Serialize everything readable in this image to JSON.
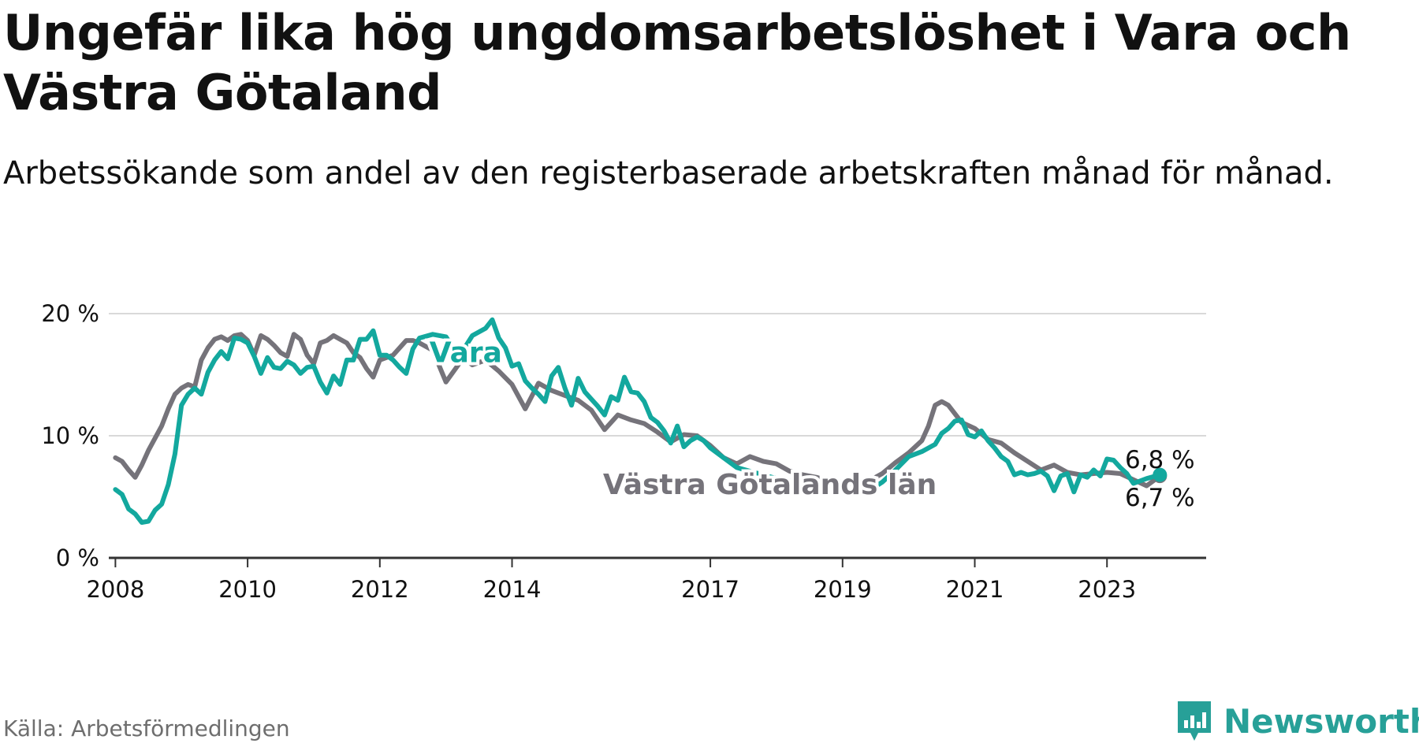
{
  "header": {
    "title": "Ungefär lika hög ungdomsarbetslöshet i Vara och Västra Götaland",
    "subtitle": "Arbetssökande som andel av den registerbaserade arbetskraften månad för månad."
  },
  "footer": {
    "source": "Källa: Arbetsförmedlingen",
    "brand": "Newsworthy"
  },
  "colors": {
    "vara": "#13a89e",
    "vgl": "#75737a",
    "grid": "#d9d9d9",
    "axis": "#333333",
    "text": "#111111"
  },
  "chart_data": {
    "type": "line",
    "title": "Ungefär lika hög ungdomsarbetslöshet i Vara och Västra Götaland",
    "xlabel": "",
    "ylabel": "",
    "xlim": [
      2007.9,
      2024.5
    ],
    "ylim": [
      0,
      20
    ],
    "yticks": [
      0,
      10,
      20
    ],
    "ytick_labels": [
      "0 %",
      "10 %",
      "20 %"
    ],
    "xticks": [
      2008,
      2010,
      2012,
      2014,
      2017,
      2019,
      2021,
      2023
    ],
    "xtick_labels": [
      "2008",
      "2010",
      "2012",
      "2014",
      "2017",
      "2019",
      "2021",
      "2023"
    ],
    "grid": true,
    "series": [
      {
        "name": "Västra Götalands län",
        "label": "Västra Götalands län",
        "end_label": "6,7 %",
        "color": "#75737a",
        "x": [
          2008.0,
          2008.1,
          2008.2,
          2008.3,
          2008.4,
          2008.5,
          2008.6,
          2008.7,
          2008.8,
          2008.9,
          2009.0,
          2009.1,
          2009.2,
          2009.3,
          2009.4,
          2009.5,
          2009.6,
          2009.7,
          2009.8,
          2009.9,
          2010.0,
          2010.1,
          2010.2,
          2010.3,
          2010.4,
          2010.5,
          2010.6,
          2010.7,
          2010.8,
          2010.9,
          2011.0,
          2011.1,
          2011.2,
          2011.3,
          2011.4,
          2011.5,
          2011.6,
          2011.7,
          2011.8,
          2011.9,
          2012.0,
          2012.1,
          2012.2,
          2012.3,
          2012.4,
          2012.5,
          2012.6,
          2012.8,
          2013.0,
          2013.2,
          2013.3,
          2013.4,
          2013.5,
          2013.6,
          2013.8,
          2014.0,
          2014.2,
          2014.4,
          2014.6,
          2014.8,
          2015.0,
          2015.2,
          2015.4,
          2015.6,
          2015.8,
          2016.0,
          2016.2,
          2016.4,
          2016.6,
          2016.8,
          2017.0,
          2017.2,
          2017.4,
          2017.6,
          2017.8,
          2018.0,
          2018.2,
          2018.4,
          2018.6,
          2018.8,
          2019.0,
          2019.2,
          2019.4,
          2019.6,
          2019.8,
          2020.0,
          2020.2,
          2020.3,
          2020.4,
          2020.5,
          2020.6,
          2020.7,
          2020.8,
          2021.0,
          2021.2,
          2021.4,
          2021.6,
          2021.8,
          2022.0,
          2022.2,
          2022.4,
          2022.6,
          2022.8,
          2023.0,
          2023.2,
          2023.4,
          2023.6,
          2023.8
        ],
        "values": [
          8.2,
          7.9,
          7.2,
          6.6,
          7.6,
          8.8,
          9.8,
          10.8,
          12.2,
          13.4,
          13.9,
          14.2,
          14.0,
          16.2,
          17.2,
          17.9,
          18.1,
          17.8,
          18.2,
          18.3,
          17.8,
          16.6,
          18.2,
          17.9,
          17.4,
          16.8,
          16.5,
          18.3,
          17.9,
          16.6,
          15.9,
          17.6,
          17.8,
          18.2,
          17.9,
          17.6,
          16.8,
          16.4,
          15.5,
          14.8,
          16.2,
          16.4,
          16.6,
          17.2,
          17.8,
          17.8,
          17.6,
          17.0,
          14.4,
          15.9,
          16.2,
          15.8,
          16.0,
          16.2,
          15.3,
          14.2,
          12.2,
          14.3,
          13.7,
          13.3,
          12.9,
          12.1,
          10.5,
          11.7,
          11.3,
          11.0,
          10.3,
          9.5,
          10.1,
          10.0,
          9.2,
          8.2,
          7.7,
          8.3,
          7.9,
          7.7,
          7.1,
          6.8,
          6.6,
          6.3,
          6.2,
          6.0,
          6.3,
          6.9,
          7.8,
          8.6,
          9.6,
          10.8,
          12.5,
          12.8,
          12.5,
          11.8,
          11.1,
          10.6,
          9.7,
          9.4,
          8.6,
          7.9,
          7.2,
          7.6,
          7.0,
          6.8,
          6.9,
          7.0,
          6.9,
          6.4,
          5.9,
          6.7
        ]
      },
      {
        "name": "Vara",
        "label": "Vara",
        "end_label": "6,8 %",
        "color": "#13a89e",
        "x": [
          2008.0,
          2008.1,
          2008.2,
          2008.3,
          2008.4,
          2008.5,
          2008.6,
          2008.7,
          2008.8,
          2008.9,
          2009.0,
          2009.1,
          2009.2,
          2009.3,
          2009.4,
          2009.5,
          2009.6,
          2009.7,
          2009.8,
          2009.9,
          2010.0,
          2010.1,
          2010.2,
          2010.3,
          2010.4,
          2010.5,
          2010.6,
          2010.7,
          2010.8,
          2010.9,
          2011.0,
          2011.1,
          2011.2,
          2011.3,
          2011.4,
          2011.5,
          2011.6,
          2011.7,
          2011.8,
          2011.9,
          2012.0,
          2012.1,
          2012.2,
          2012.3,
          2012.4,
          2012.5,
          2012.6,
          2012.8,
          2013.0,
          2013.2,
          2013.4,
          2013.5,
          2013.6,
          2013.7,
          2013.8,
          2013.9,
          2014.0,
          2014.1,
          2014.2,
          2014.3,
          2014.4,
          2014.5,
          2014.6,
          2014.7,
          2014.8,
          2014.9,
          2015.0,
          2015.1,
          2015.2,
          2015.3,
          2015.4,
          2015.5,
          2015.6,
          2015.7,
          2015.8,
          2015.9,
          2016.0,
          2016.1,
          2016.2,
          2016.3,
          2016.4,
          2016.5,
          2016.6,
          2016.7,
          2016.8,
          2016.9,
          2017.0,
          2017.2,
          2017.4,
          2017.6,
          2017.8,
          2018.0,
          2018.2,
          2018.4,
          2018.6,
          2018.8,
          2019.0,
          2019.2,
          2019.4,
          2019.6,
          2019.8,
          2020.0,
          2020.2,
          2020.4,
          2020.5,
          2020.6,
          2020.7,
          2020.8,
          2020.9,
          2021.0,
          2021.1,
          2021.2,
          2021.3,
          2021.4,
          2021.5,
          2021.6,
          2021.7,
          2021.8,
          2021.9,
          2022.0,
          2022.1,
          2022.2,
          2022.3,
          2022.4,
          2022.5,
          2022.6,
          2022.7,
          2022.8,
          2022.9,
          2023.0,
          2023.1,
          2023.2,
          2023.3,
          2023.4,
          2023.6,
          2023.8
        ],
        "values": [
          5.6,
          5.2,
          4.0,
          3.6,
          2.9,
          3.0,
          3.9,
          4.4,
          6.0,
          8.5,
          12.5,
          13.4,
          13.9,
          13.4,
          15.2,
          16.2,
          16.9,
          16.3,
          18.0,
          17.9,
          17.6,
          16.5,
          15.1,
          16.4,
          15.6,
          15.5,
          16.1,
          15.8,
          15.1,
          15.6,
          15.7,
          14.4,
          13.5,
          14.9,
          14.2,
          16.2,
          16.2,
          17.9,
          17.9,
          18.6,
          16.6,
          16.6,
          16.2,
          15.6,
          15.1,
          17.1,
          18.0,
          18.3,
          18.1,
          16.5,
          18.2,
          18.5,
          18.8,
          19.5,
          18.0,
          17.2,
          15.7,
          15.9,
          14.5,
          13.9,
          13.4,
          12.8,
          14.9,
          15.6,
          13.9,
          12.5,
          14.7,
          13.6,
          13.0,
          12.4,
          11.7,
          13.2,
          12.9,
          14.8,
          13.6,
          13.5,
          12.8,
          11.5,
          11.1,
          10.4,
          9.4,
          10.8,
          9.1,
          9.6,
          9.9,
          9.6,
          9.0,
          8.2,
          7.4,
          7.1,
          6.8,
          6.5,
          6.3,
          6.1,
          5.8,
          5.6,
          5.4,
          5.3,
          5.5,
          6.2,
          7.2,
          8.3,
          8.7,
          9.3,
          10.2,
          10.6,
          11.2,
          11.3,
          10.1,
          9.9,
          10.4,
          9.6,
          9.0,
          8.3,
          7.9,
          6.8,
          7.0,
          6.8,
          6.9,
          7.1,
          6.7,
          5.5,
          6.7,
          6.9,
          5.4,
          6.8,
          6.6,
          7.2,
          6.7,
          8.1,
          8.0,
          7.4,
          6.9,
          6.1,
          6.5,
          6.8
        ]
      }
    ]
  }
}
